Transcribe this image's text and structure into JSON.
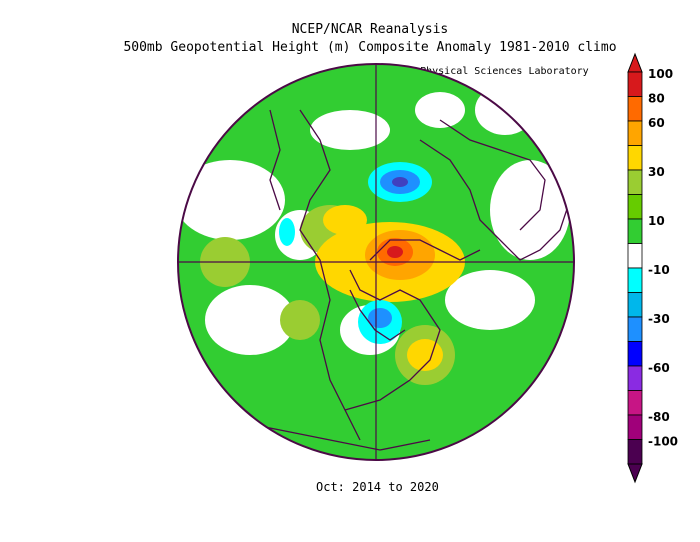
{
  "header": {
    "title_line1": "NCEP/NCAR Reanalysis",
    "title_line2": "500mb Geopotential Height (m) Composite Anomaly 1981-2010 climo",
    "credit": "NOAA Physical Sciences Laboratory"
  },
  "footer": {
    "period": "Oct: 2014 to 2020"
  },
  "colorbar": {
    "levels": [
      {
        "label": "100",
        "color": "#d7191c"
      },
      {
        "label": "80",
        "color": "#ff6a00"
      },
      {
        "label": "60",
        "color": "#ffa500"
      },
      {
        "label": "",
        "color": "#ffd700"
      },
      {
        "label": "30",
        "color": "#9acd32"
      },
      {
        "label": "",
        "color": "#66cc00"
      },
      {
        "label": "10",
        "color": "#32cd32"
      },
      {
        "label": "",
        "color": "#ffffff"
      },
      {
        "label": "-10",
        "color": "#00ffff"
      },
      {
        "label": "",
        "color": "#00b7eb"
      },
      {
        "label": "-30",
        "color": "#1e90ff"
      },
      {
        "label": "",
        "color": "#0000ff"
      },
      {
        "label": "-60",
        "color": "#8a2be2"
      },
      {
        "label": "",
        "color": "#c71585"
      },
      {
        "label": "-80",
        "color": "#a0007a"
      },
      {
        "label": "-100",
        "color": "#4b0050"
      }
    ],
    "top_arrow_color": "#d7191c",
    "bottom_arrow_color": "#4b0050"
  },
  "map": {
    "projection": "polar stereographic (north pole)",
    "background_anomaly_color": "#32cd32",
    "coast_color": "#4b0a46"
  }
}
